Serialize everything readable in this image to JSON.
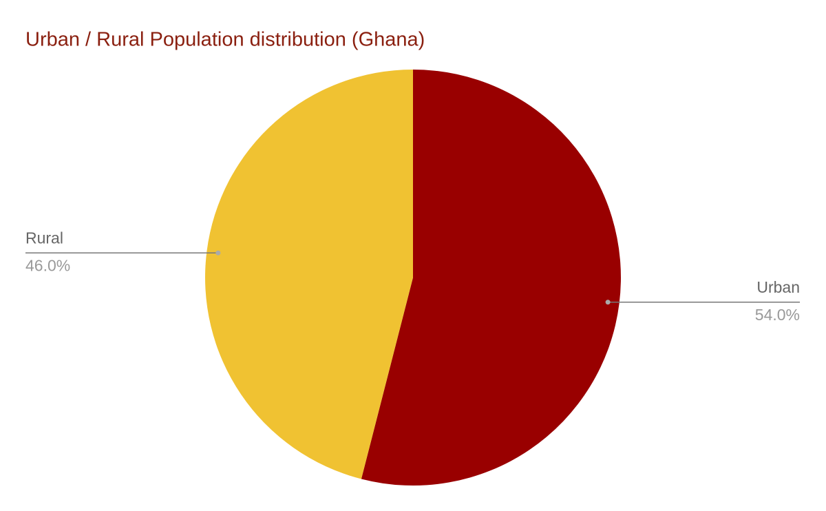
{
  "chart_data": {
    "type": "pie",
    "title": "Urban / Rural Population distribution (Ghana)",
    "categories": [
      "Urban",
      "Rural"
    ],
    "values": [
      54,
      46
    ],
    "value_labels": [
      "54.0%",
      "46.0%"
    ],
    "colors": [
      "#990000",
      "#f0c232"
    ]
  }
}
